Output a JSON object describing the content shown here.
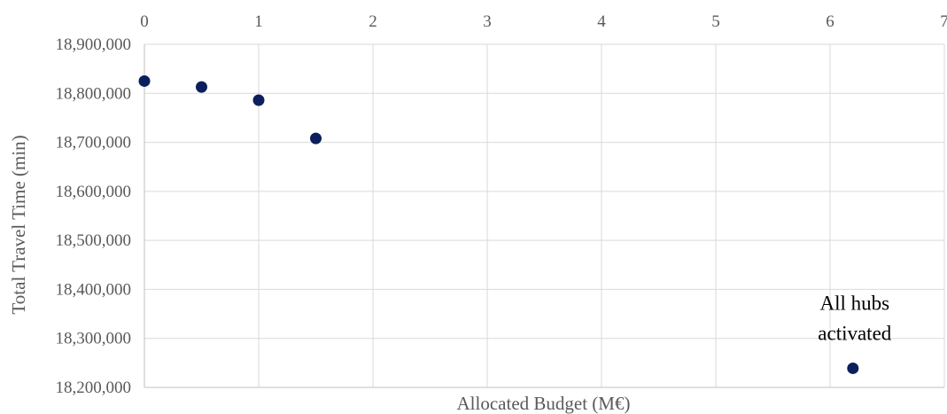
{
  "chart_data": {
    "type": "scatter",
    "title": "",
    "xlabel": "Allocated Budget (M€)",
    "ylabel": "Total Travel Time (min)",
    "xlim": [
      0,
      7
    ],
    "ylim": [
      18200000,
      18900000
    ],
    "x_ticks": [
      "0",
      "1",
      "2",
      "3",
      "4",
      "5",
      "6",
      "7"
    ],
    "y_ticks": [
      "18,200,000",
      "18,300,000",
      "18,400,000",
      "18,500,000",
      "18,600,000",
      "18,700,000",
      "18,800,000",
      "18,900,000"
    ],
    "x_axis_position": "top",
    "grid": true,
    "marker_color": "#0b1f5c",
    "series": [
      {
        "x": [
          0,
          0.5,
          1,
          1.5,
          6.2
        ],
        "y": [
          18825000,
          18813000,
          18786000,
          18708000,
          18239000
        ]
      }
    ],
    "annotations": [
      {
        "lines": [
          "All hubs",
          "activated"
        ],
        "x": 6.2,
        "y": 18239000
      }
    ]
  }
}
